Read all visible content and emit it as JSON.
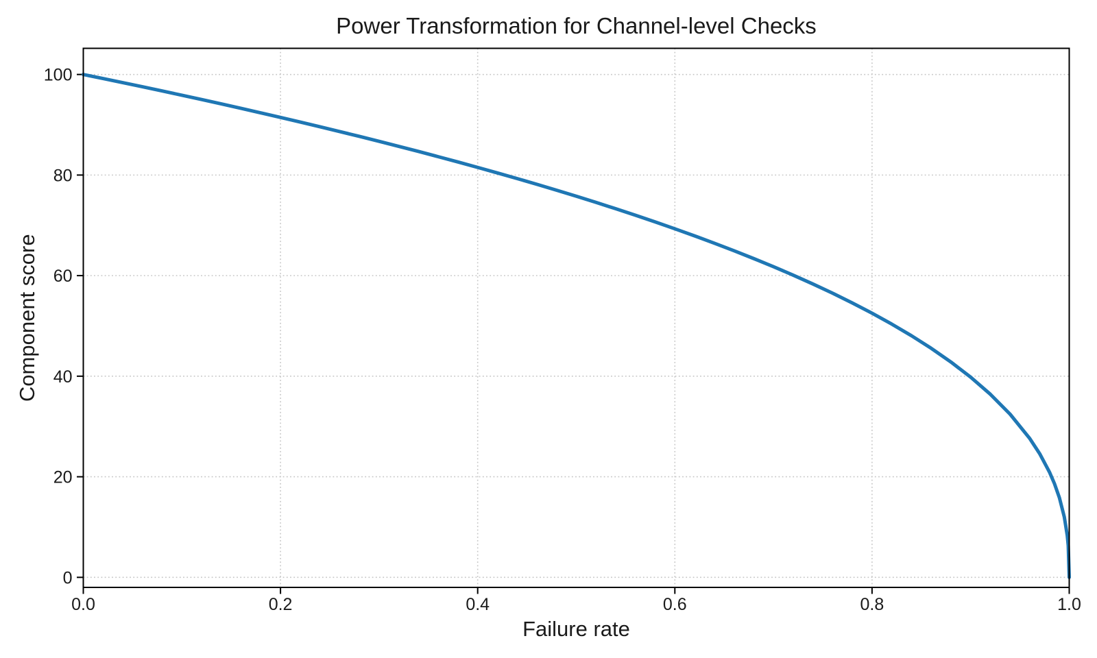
{
  "chart_data": {
    "type": "line",
    "title": "Power Transformation for Channel-level Checks",
    "xlabel": "Failure rate",
    "ylabel": "Component score",
    "xlim": [
      0.0,
      1.0
    ],
    "ylim": [
      -2.0,
      105.2
    ],
    "xticks": [
      0.0,
      0.2,
      0.4,
      0.6,
      0.8,
      1.0
    ],
    "xtick_labels": [
      "0.0",
      "0.2",
      "0.4",
      "0.6",
      "0.8",
      "1.0"
    ],
    "yticks": [
      0,
      20,
      40,
      60,
      80,
      100
    ],
    "ytick_labels": [
      "0",
      "20",
      "40",
      "60",
      "80",
      "100"
    ],
    "grid": true,
    "grid_style": "dotted",
    "legend_position": "none",
    "line_width": 5,
    "colors": {
      "line": "#1f77b4",
      "grid": "#c6c6c6",
      "axis": "#000000",
      "text": "#1a1a1a",
      "background": "#ffffff"
    },
    "series": [
      {
        "name": "component_score",
        "x": [
          0,
          0.02,
          0.04,
          0.06,
          0.08,
          0.1,
          0.12,
          0.14,
          0.16,
          0.18,
          0.2,
          0.22,
          0.24,
          0.26,
          0.28,
          0.3,
          0.32,
          0.34,
          0.36,
          0.38,
          0.4,
          0.42,
          0.44,
          0.46,
          0.48,
          0.5,
          0.52,
          0.54,
          0.56,
          0.58,
          0.6,
          0.62,
          0.64,
          0.66,
          0.68,
          0.7,
          0.72,
          0.74,
          0.76,
          0.78,
          0.8,
          0.82,
          0.84,
          0.86,
          0.88,
          0.9,
          0.92,
          0.94,
          0.96,
          0.97,
          0.98,
          0.985,
          0.99,
          0.995,
          0.998,
          0.999,
          1.0
        ],
        "y": [
          100,
          99.19,
          98.38,
          97.56,
          96.72,
          95.87,
          95.02,
          94.15,
          93.26,
          92.37,
          91.46,
          90.54,
          89.6,
          88.65,
          87.69,
          86.7,
          85.7,
          84.69,
          83.65,
          82.6,
          81.52,
          80.42,
          79.3,
          78.16,
          76.98,
          75.79,
          74.56,
          73.3,
          72.01,
          70.68,
          69.31,
          67.91,
          66.45,
          64.95,
          63.39,
          61.78,
          60.1,
          58.34,
          56.51,
          54.57,
          52.53,
          50.36,
          48.05,
          45.55,
          42.82,
          39.81,
          36.41,
          32.45,
          27.6,
          24.6,
          20.91,
          18.64,
          15.85,
          12.01,
          8.33,
          6.31,
          0
        ]
      }
    ]
  }
}
